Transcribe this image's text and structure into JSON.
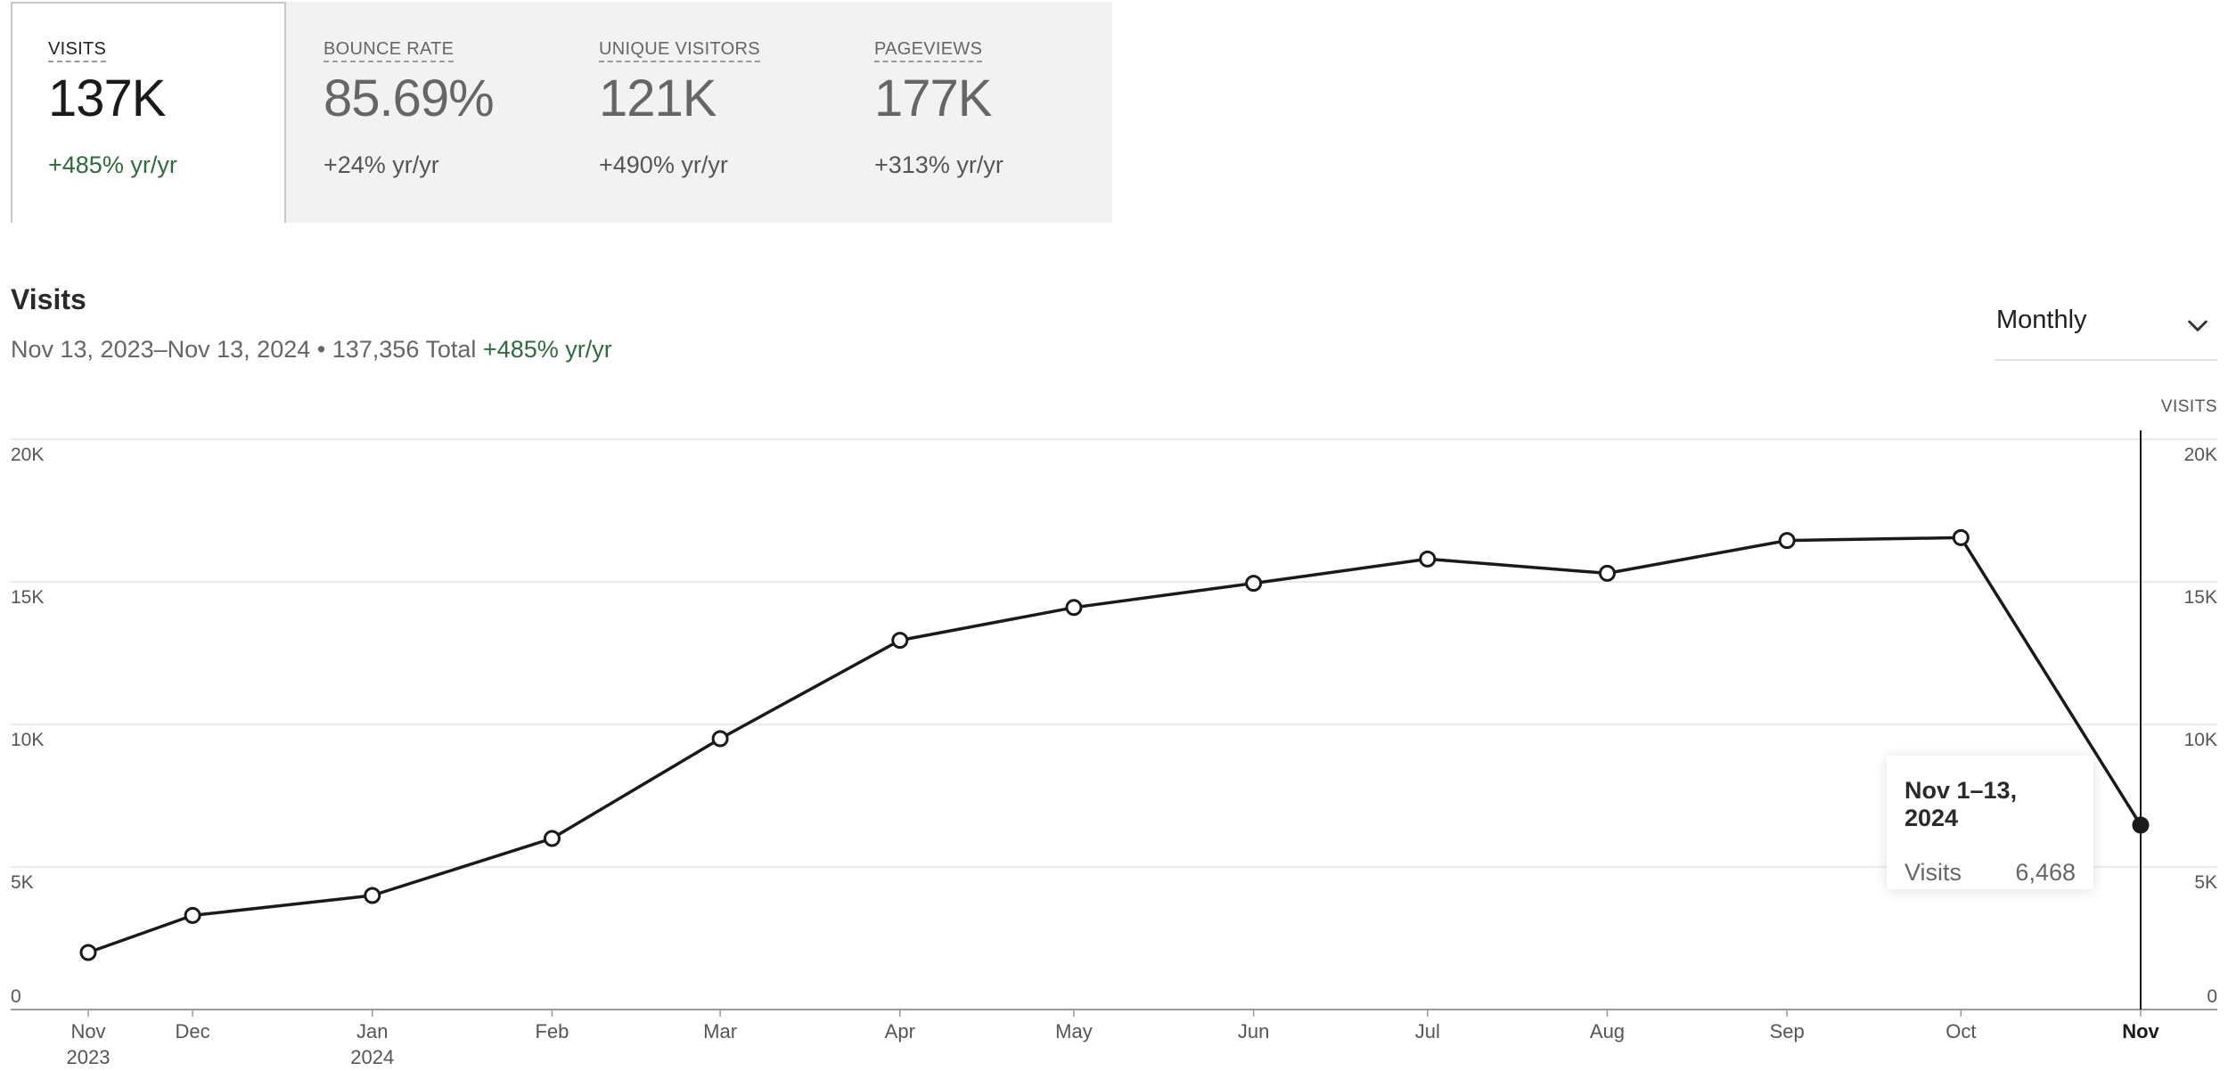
{
  "metrics": [
    {
      "label": "VISITS",
      "value": "137K",
      "change": "+485% yr/yr"
    },
    {
      "label": "BOUNCE RATE",
      "value": "85.69%",
      "change": "+24% yr/yr"
    },
    {
      "label": "UNIQUE VISITORS",
      "value": "121K",
      "change": "+490% yr/yr"
    },
    {
      "label": "PAGEVIEWS",
      "value": "177K",
      "change": "+313% yr/yr"
    }
  ],
  "section": {
    "title": "Visits",
    "range": "Nov 13, 2023–Nov 13, 2024",
    "separator": "•",
    "total": "137,356 Total",
    "change": "+485% yr/yr"
  },
  "period_select": {
    "value": "Monthly",
    "icon": "chevron-down-icon"
  },
  "tooltip": {
    "title": "Nov 1–13, 2024",
    "metric": "Visits",
    "value": "6,468"
  },
  "colors": {
    "positive": "#2e6b3a",
    "line": "#1a1a1a",
    "grid": "#e4e4e4"
  },
  "chart_data": {
    "type": "line",
    "ylabel": "VISITS",
    "ylim": [
      0,
      20000
    ],
    "yticks": [
      "0",
      "5K",
      "10K",
      "15K",
      "20K"
    ],
    "yticks_values": [
      0,
      5000,
      10000,
      15000,
      20000
    ],
    "grid": true,
    "series": [
      {
        "points": [
          {
            "date": "2023-11-13",
            "label": "Nov",
            "sublabel": "2023",
            "y": 2000
          },
          {
            "date": "2023-12-01",
            "label": "Dec",
            "sublabel": "",
            "y": 3300
          },
          {
            "date": "2024-01-01",
            "label": "Jan",
            "sublabel": "2024",
            "y": 4000
          },
          {
            "date": "2024-02-01",
            "label": "Feb",
            "sublabel": "",
            "y": 6000
          },
          {
            "date": "2024-03-01",
            "label": "Mar",
            "sublabel": "",
            "y": 9500
          },
          {
            "date": "2024-04-01",
            "label": "Apr",
            "sublabel": "",
            "y": 12950
          },
          {
            "date": "2024-05-01",
            "label": "May",
            "sublabel": "",
            "y": 14100
          },
          {
            "date": "2024-06-01",
            "label": "Jun",
            "sublabel": "",
            "y": 14950
          },
          {
            "date": "2024-07-01",
            "label": "Jul",
            "sublabel": "",
            "y": 15800
          },
          {
            "date": "2024-08-01",
            "label": "Aug",
            "sublabel": "",
            "y": 15300
          },
          {
            "date": "2024-09-01",
            "label": "Sep",
            "sublabel": "",
            "y": 16450
          },
          {
            "date": "2024-10-01",
            "label": "Oct",
            "sublabel": "",
            "y": 16550
          },
          {
            "date": "2024-11-01",
            "label": "Nov",
            "sublabel": "",
            "y": 6468
          }
        ]
      }
    ],
    "selected_index": 12
  }
}
